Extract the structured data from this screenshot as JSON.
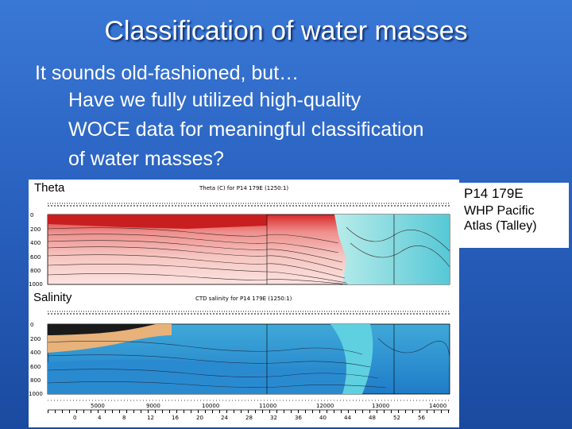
{
  "slide": {
    "title": "Classification of water masses",
    "lines": [
      "It sounds old-fashioned, but…",
      "Have we fully utilized high-quality",
      "WOCE data for meaningful classification",
      "of water masses?"
    ]
  },
  "figure": {
    "theta_label": "Theta",
    "theta_heading": "Theta (C) for P14 179E (1250:1)",
    "salinity_label": "Salinity",
    "salinity_heading": "CTD salinity for P14 179E (1250:1)",
    "depth_ticks": [
      "0",
      "200",
      "400",
      "600",
      "800",
      "1000"
    ],
    "distance_ticks": [
      "5000",
      "9000",
      "10000",
      "11000",
      "12000",
      "13000",
      "14000"
    ],
    "latitude_ticks": [
      "0",
      "4",
      "8",
      "12",
      "16",
      "20",
      "24",
      "28",
      "32",
      "36",
      "40",
      "44",
      "48",
      "52",
      "56"
    ]
  },
  "caption": {
    "line1": "P14  179E",
    "line2": "WHP Pacific",
    "line3": "Atlas (Talley)"
  }
}
